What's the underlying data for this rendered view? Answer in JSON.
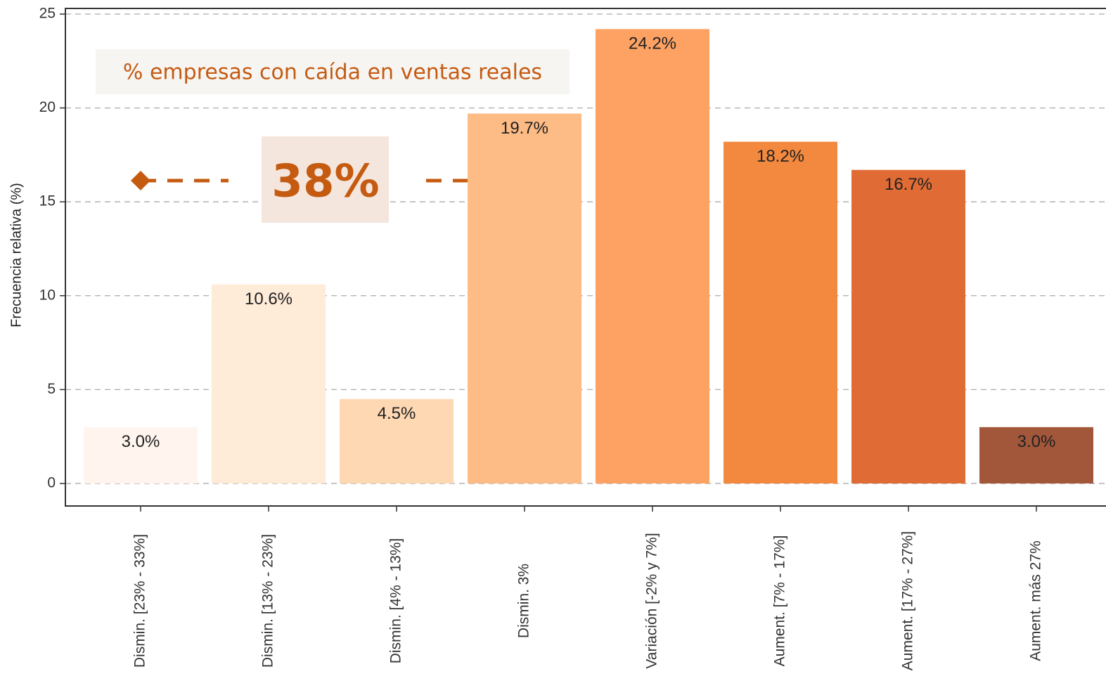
{
  "chart_data": {
    "type": "bar",
    "y_axis_label": "Frecuencia relativa (%)",
    "categories": [
      "Dismin. [23% - 33%]",
      "Dismin. [13% - 23%]",
      "Dismin. [4% - 13%]",
      "Dismin. 3%",
      "Variación [-2% y 7%]",
      "Aument. [7% - 17%]",
      "Aument. [17% - 27%]",
      "Aument. más 27%"
    ],
    "values": [
      3.0,
      10.6,
      4.5,
      19.7,
      24.2,
      18.2,
      16.7,
      3.0
    ],
    "value_labels": [
      "3.0%",
      "10.6%",
      "4.5%",
      "19.7%",
      "24.2%",
      "18.2%",
      "16.7%",
      "3.0%"
    ],
    "colors": [
      "#fff5ee",
      "#feebd8",
      "#fdd8b3",
      "#fdbb85",
      "#fda262",
      "#f3883f",
      "#e06b34",
      "#a3573a"
    ],
    "ylim": [
      -1.2,
      25.3
    ],
    "yticks": [
      0,
      5,
      10,
      15,
      20,
      25
    ],
    "grid": true,
    "annotation": {
      "caption": "% empresas con caída en ventas reales",
      "highlight": "38%"
    }
  }
}
